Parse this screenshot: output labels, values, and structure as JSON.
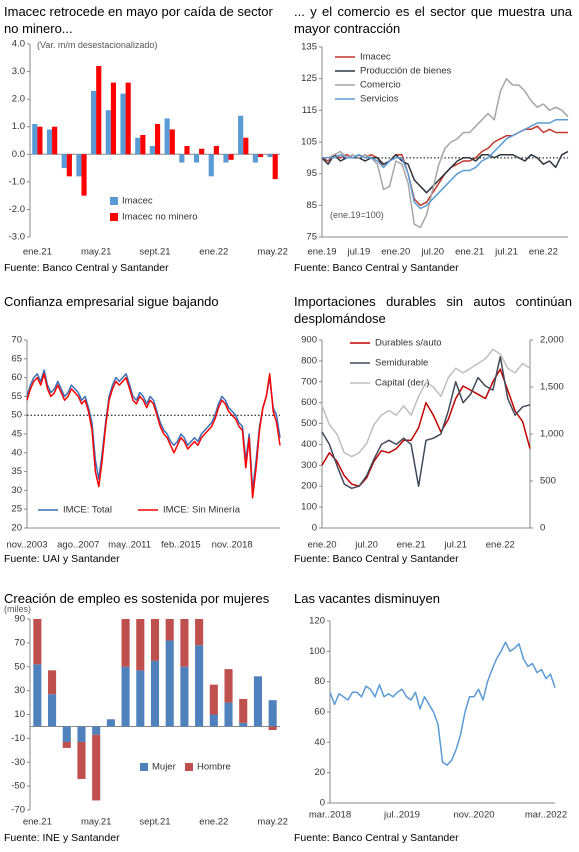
{
  "chart_data": [
    {
      "type": "bar",
      "title": "Imacec retrocede en mayo por caída de sector no minero...",
      "subtitle": "(Var. m/m desestacionalizado)",
      "source": "Fuente: Banco Central y Santander",
      "categories": [
        "ene.21",
        null,
        null,
        null,
        "may.21",
        null,
        null,
        null,
        "sept.21",
        null,
        null,
        null,
        "ene.22",
        null,
        null,
        null,
        "may.22"
      ],
      "series": [
        {
          "name": "Imacec",
          "color": "#5b9bd5",
          "values": [
            1.1,
            0.9,
            -0.5,
            -0.8,
            2.3,
            1.6,
            2.2,
            0.6,
            0.3,
            1.3,
            -0.3,
            -0.3,
            -0.8,
            -0.3,
            1.4,
            -0.3,
            -0.1
          ]
        },
        {
          "name": "Imacec no minero",
          "color": "#ff0000",
          "values": [
            1.0,
            1.0,
            -0.8,
            -1.5,
            3.2,
            2.6,
            2.6,
            0.7,
            1.1,
            0.9,
            0.3,
            0.2,
            0.3,
            -0.2,
            0.6,
            -0.1,
            -0.9
          ]
        }
      ],
      "ylim": [
        -3,
        4
      ],
      "yticks": [
        {
          "value": -3,
          "label": "-3.0"
        },
        {
          "value": -2,
          "label": "-2.0"
        },
        {
          "value": -1,
          "label": "-1.0"
        },
        {
          "value": 0,
          "label": "0.0"
        },
        {
          "value": 1,
          "label": "1.0"
        },
        {
          "value": 2,
          "label": "2.0"
        },
        {
          "value": 3,
          "label": "3.0"
        },
        {
          "value": 4,
          "label": "4.0"
        }
      ]
    },
    {
      "type": "line",
      "title": "... y el comercio es el sector que muestra una mayor contracción",
      "annotation": "(ene.19=100)",
      "source": "Fuente: Banco Central y Santander",
      "reference_line": 100,
      "categories": [
        "ene.19",
        null,
        null,
        null,
        null,
        null,
        "jul.19",
        null,
        null,
        null,
        null,
        null,
        "ene.20",
        null,
        null,
        null,
        null,
        null,
        "jul.20",
        null,
        null,
        null,
        null,
        null,
        "ene.21",
        null,
        null,
        null,
        null,
        null,
        "jul.21",
        null,
        null,
        null,
        null,
        null,
        "ene.22",
        null,
        null,
        null,
        null
      ],
      "series": [
        {
          "name": "Imacec",
          "color": "#c0392b",
          "values": [
            100,
            99,
            101,
            100,
            101,
            100,
            101,
            100,
            101,
            100,
            97,
            99,
            101,
            101,
            95,
            87,
            85,
            86,
            89,
            92,
            95,
            97,
            98,
            99,
            99,
            100,
            102,
            103,
            105,
            106,
            107,
            107,
            108,
            109,
            109,
            110,
            108,
            109,
            108,
            108,
            108
          ]
        },
        {
          "name": "Producción de bienes",
          "color": "#2f3640",
          "values": [
            100,
            98,
            101,
            99,
            100,
            100,
            100,
            99,
            100,
            100,
            98,
            99,
            101,
            99,
            98,
            93,
            91,
            89,
            91,
            93,
            95,
            97,
            99,
            100,
            100,
            99,
            101,
            101,
            100,
            101,
            101,
            101,
            100,
            99,
            101,
            100,
            98,
            99,
            97,
            101,
            102
          ]
        },
        {
          "name": "Comercio",
          "color": "#a6a6a6",
          "values": [
            100,
            100,
            101,
            102,
            100,
            101,
            100,
            101,
            100,
            98,
            90,
            91,
            99,
            98,
            92,
            79,
            78,
            82,
            90,
            98,
            103,
            105,
            106,
            108,
            108,
            110,
            112,
            114,
            112,
            121,
            125,
            123,
            123,
            121,
            118,
            116,
            117,
            115,
            116,
            115,
            113
          ]
        },
        {
          "name": "Servicios",
          "color": "#5b9bd5",
          "values": [
            100,
            100,
            100,
            101,
            100,
            100,
            101,
            100,
            100,
            99,
            97,
            99,
            100,
            100,
            95,
            86,
            84,
            85,
            87,
            89,
            91,
            93,
            95,
            96,
            96,
            97,
            99,
            100,
            102,
            104,
            106,
            107,
            108,
            109,
            110,
            111,
            111,
            111,
            112,
            112,
            112
          ]
        }
      ],
      "ylim": [
        75,
        135
      ],
      "yticks": [
        75,
        85,
        95,
        105,
        115,
        125,
        135
      ]
    },
    {
      "type": "line",
      "title": "Confianza empresarial sigue bajando",
      "source": "Fuente: UAI y Santander",
      "reference_line": 50,
      "categories": [
        "nov..2003",
        null,
        null,
        null,
        null,
        null,
        null,
        null,
        null,
        null,
        null,
        null,
        null,
        null,
        null,
        "ago..2007",
        null,
        null,
        null,
        null,
        null,
        null,
        null,
        null,
        null,
        null,
        null,
        null,
        null,
        null,
        "may..2011",
        null,
        null,
        null,
        null,
        null,
        null,
        null,
        null,
        null,
        null,
        null,
        null,
        null,
        null,
        "feb..2015",
        null,
        null,
        null,
        null,
        null,
        null,
        null,
        null,
        null,
        null,
        null,
        null,
        null,
        null,
        "nov..2018",
        null,
        null,
        null,
        null,
        null,
        null,
        null,
        null,
        null,
        null,
        null,
        null,
        null,
        null
      ],
      "series": [
        {
          "name": "IMCE: Total",
          "color": "#3b6fb6",
          "values": [
            55,
            58,
            60,
            61,
            59,
            62,
            58,
            56,
            57,
            59,
            57,
            55,
            56,
            58,
            57,
            56,
            54,
            55,
            52,
            48,
            38,
            33,
            40,
            48,
            55,
            58,
            60,
            59,
            60,
            61,
            58,
            55,
            54,
            56,
            55,
            53,
            55,
            54,
            51,
            48,
            46,
            45,
            43,
            42,
            43,
            45,
            44,
            42,
            43,
            44,
            43,
            45,
            46,
            47,
            48,
            50,
            53,
            55,
            54,
            52,
            51,
            50,
            48,
            47,
            38,
            45,
            30,
            38,
            47,
            52,
            55,
            60,
            52,
            50,
            44
          ]
        },
        {
          "name": "IMCE:  Sin Minería",
          "color": "#ff0000",
          "values": [
            54,
            57,
            59,
            60,
            58,
            61,
            57,
            55,
            56,
            58,
            56,
            54,
            55,
            57,
            56,
            55,
            53,
            54,
            51,
            46,
            35,
            31,
            38,
            47,
            54,
            57,
            59,
            58,
            59,
            60,
            57,
            54,
            53,
            55,
            54,
            52,
            54,
            53,
            50,
            47,
            45,
            44,
            42,
            40,
            42,
            44,
            43,
            41,
            42,
            43,
            42,
            44,
            45,
            46,
            47,
            49,
            52,
            54,
            53,
            51,
            50,
            49,
            47,
            46,
            36,
            44,
            28,
            36,
            46,
            52,
            55,
            61,
            51,
            48,
            42
          ]
        }
      ],
      "ylim": [
        20,
        70
      ],
      "yticks": [
        20,
        25,
        30,
        35,
        40,
        45,
        50,
        55,
        60,
        65,
        70
      ]
    },
    {
      "type": "line",
      "title": "Importaciones durables sin autos continúan desplomándose",
      "source": "Fuente: Banco Central y Santander",
      "categories": [
        "ene.20",
        null,
        null,
        null,
        null,
        null,
        "jul.20",
        null,
        null,
        null,
        null,
        null,
        "ene.21",
        null,
        null,
        null,
        null,
        null,
        "jul.21",
        null,
        null,
        null,
        null,
        null,
        "ene.22",
        null,
        null,
        null,
        null
      ],
      "series": [
        {
          "name": "Durables s/auto",
          "color": "#c00000",
          "values": [
            300,
            360,
            320,
            250,
            210,
            200,
            240,
            320,
            370,
            360,
            380,
            420,
            420,
            480,
            600,
            540,
            460,
            520,
            620,
            680,
            660,
            640,
            620,
            700,
            760,
            660,
            560,
            510,
            380
          ]
        },
        {
          "name": "Semidurable",
          "color": "#404a5a",
          "values": [
            460,
            400,
            300,
            210,
            190,
            200,
            250,
            330,
            400,
            420,
            400,
            430,
            400,
            200,
            420,
            430,
            450,
            560,
            700,
            600,
            640,
            720,
            680,
            660,
            820,
            620,
            540,
            580,
            590
          ]
        },
        {
          "name": "Capital (der.)",
          "color": "#bfbfbf",
          "axis": "y2",
          "values": [
            1300,
            1100,
            1000,
            800,
            760,
            800,
            900,
            1100,
            1200,
            1250,
            1200,
            1300,
            1200,
            1400,
            1550,
            1500,
            1400,
            1600,
            1700,
            1650,
            1700,
            1750,
            1800,
            1900,
            1850,
            1700,
            1650,
            1750,
            1700
          ]
        }
      ],
      "ylim": [
        0,
        900
      ],
      "yticks": [
        0,
        100,
        200,
        300,
        400,
        500,
        600,
        700,
        800,
        900
      ],
      "y2lim": [
        0,
        2000
      ],
      "y2ticks": [
        0,
        500,
        {
          "value": 1000,
          "label": "1,000"
        },
        {
          "value": 1500,
          "label": "1,500"
        },
        {
          "value": 2000,
          "label": "2,000"
        }
      ]
    },
    {
      "type": "bar",
      "stacked": true,
      "title": "Creación de empleo es sostenida por mujeres",
      "subtitle": "(miles)",
      "source": "Fuente: INE y Santander",
      "categories": [
        "ene.21",
        null,
        null,
        null,
        "may.21",
        null,
        null,
        null,
        "sept.21",
        null,
        null,
        null,
        "ene.22",
        null,
        null,
        null,
        "may.22"
      ],
      "series": [
        {
          "name": "Mujer",
          "color": "#4f81bd",
          "values": [
            52,
            27,
            -13,
            -13,
            -7,
            6,
            50,
            47,
            55,
            72,
            50,
            68,
            10,
            20,
            3,
            42,
            22
          ]
        },
        {
          "name": "Hombre",
          "color": "#c0504d",
          "values": [
            38,
            20,
            -5,
            -31,
            -55,
            0,
            40,
            43,
            35,
            18,
            40,
            22,
            25,
            28,
            20,
            0,
            -3
          ]
        }
      ],
      "ylim": [
        -70,
        90
      ],
      "yticks": [
        -70,
        -50,
        -30,
        -10,
        10,
        30,
        50,
        70,
        90
      ]
    },
    {
      "type": "line",
      "title": "Las vacantes disminuyen",
      "source": "Fuente: Banco Central y Santander",
      "categories": [
        "mar..2018",
        null,
        null,
        null,
        null,
        null,
        null,
        null,
        null,
        null,
        null,
        null,
        null,
        null,
        null,
        null,
        "jul..2019",
        null,
        null,
        null,
        null,
        null,
        null,
        null,
        null,
        null,
        null,
        null,
        null,
        null,
        null,
        null,
        "nov..2020",
        null,
        null,
        null,
        null,
        null,
        null,
        null,
        null,
        null,
        null,
        null,
        null,
        null,
        null,
        null,
        "mar..2022",
        null,
        null
      ],
      "series": [
        {
          "color": "#5b9bd5",
          "values": [
            73,
            65,
            72,
            70,
            68,
            73,
            73,
            70,
            77,
            75,
            70,
            78,
            70,
            72,
            70,
            73,
            75,
            70,
            68,
            73,
            62,
            70,
            65,
            60,
            52,
            27,
            25,
            28,
            35,
            45,
            60,
            70,
            70,
            75,
            68,
            80,
            88,
            95,
            100,
            106,
            100,
            102,
            105,
            95,
            90,
            92,
            86,
            88,
            82,
            85,
            76
          ]
        }
      ],
      "ylim": [
        0,
        120
      ],
      "yticks": [
        0,
        20,
        40,
        60,
        80,
        100,
        120
      ]
    }
  ]
}
